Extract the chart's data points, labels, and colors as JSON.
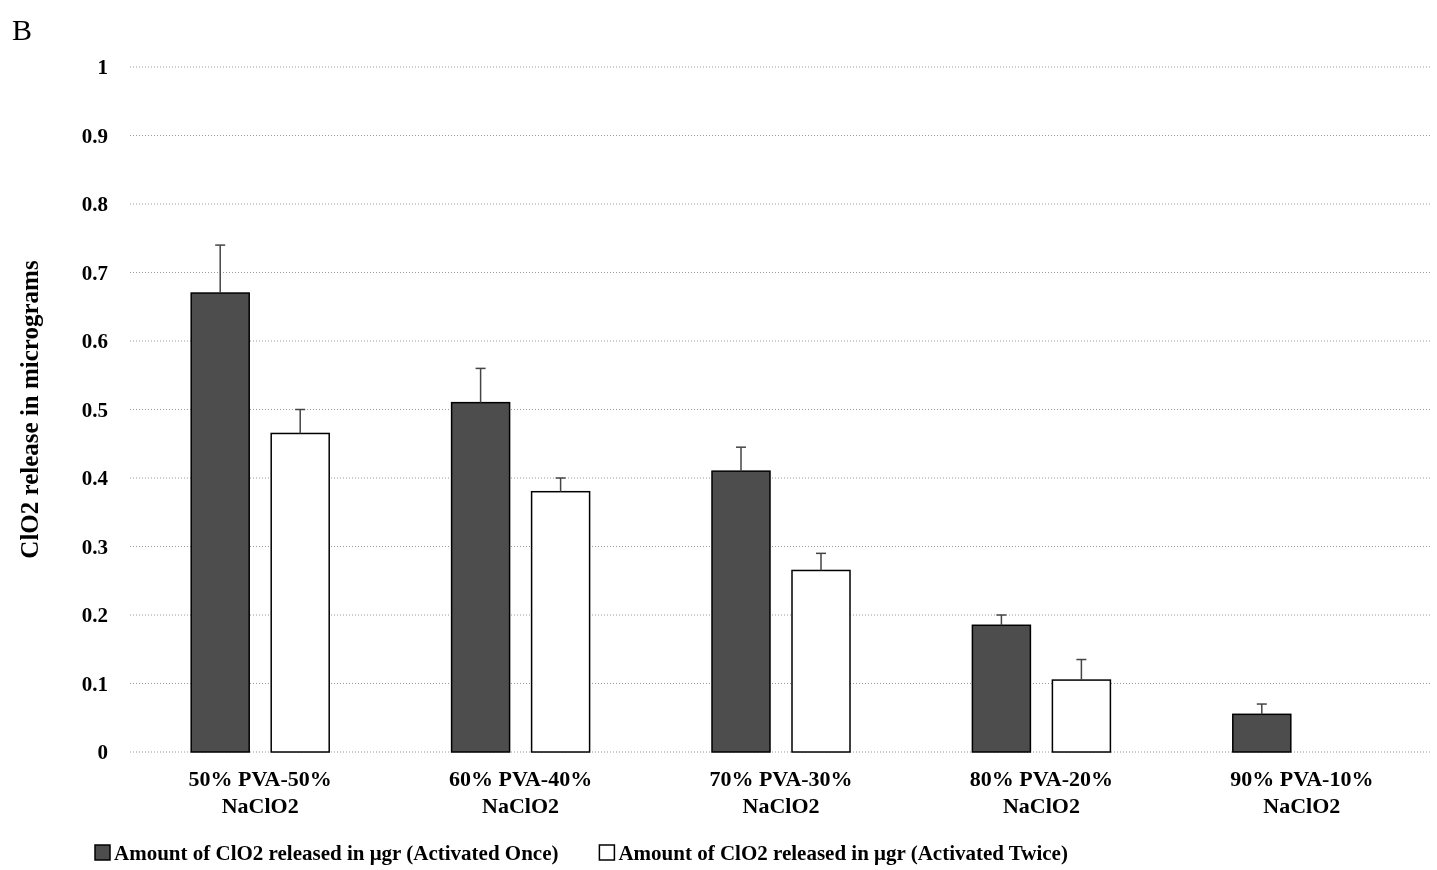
{
  "chart_data": {
    "type": "bar",
    "title": "B",
    "ylabel": "ClO2 release in micrograms",
    "categories": [
      "50% PVA-50%\nNaClO2",
      "60% PVA-40%\nNaClO2",
      "70% PVA-30%\nNaClO2",
      "80% PVA-20%\nNaClO2",
      "90% PVA-10%\nNaClO2"
    ],
    "series": [
      {
        "name": "Amount of ClO2 released in μgr (Activated Once)",
        "color": "#4d4d4d",
        "values": [
          0.67,
          0.51,
          0.41,
          0.185,
          0.055
        ],
        "errors": [
          [
            0.67,
            0.74
          ],
          [
            0.51,
            0.56
          ],
          [
            0.41,
            0.445
          ],
          [
            0.185,
            0.2
          ],
          [
            0.055,
            0.07
          ]
        ]
      },
      {
        "name": "Amount of ClO2 released in μgr (Activated Twice)",
        "color": "#ffffff",
        "values": [
          0.465,
          0.38,
          0.265,
          0.105,
          null
        ],
        "errors": [
          [
            0.465,
            0.5
          ],
          [
            0.38,
            0.4
          ],
          [
            0.265,
            0.29
          ],
          [
            0.105,
            0.135
          ],
          null
        ]
      }
    ],
    "ylim": [
      0,
      1
    ],
    "yticks": [
      0,
      0.1,
      0.2,
      0.3,
      0.4,
      0.5,
      0.6,
      0.7,
      0.8,
      0.9,
      1
    ],
    "grid": "y",
    "legend": "bottom"
  }
}
